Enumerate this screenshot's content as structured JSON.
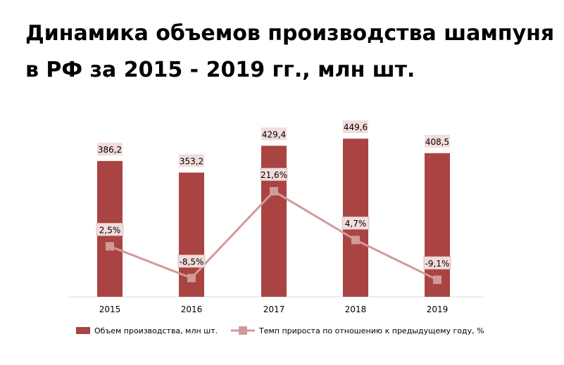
{
  "chart_data": {
    "type": "bar",
    "title": "Динамика объемов производства шампуня в РФ за 2015 - 2019 гг., млн шт.",
    "categories": [
      "2015",
      "2016",
      "2017",
      "2018",
      "2019"
    ],
    "series": [
      {
        "name": "Объем производства, млн шт.",
        "type": "bar",
        "values": [
          386.2,
          353.2,
          429.4,
          449.6,
          408.5
        ],
        "labels": [
          "386,2",
          "353,2",
          "429,4",
          "449,6",
          "408,5"
        ],
        "color": "#a94442"
      },
      {
        "name": "Темп прироста по отношению к предыдущему году, %",
        "type": "line",
        "values": [
          2.5,
          -8.5,
          21.6,
          4.7,
          -9.1
        ],
        "labels": [
          "2,5%",
          "-8,5%",
          "21,6%",
          "4,7%",
          "-9,1%"
        ],
        "color": "#d09a99"
      }
    ],
    "grid": false,
    "legend_position": "bottom"
  }
}
